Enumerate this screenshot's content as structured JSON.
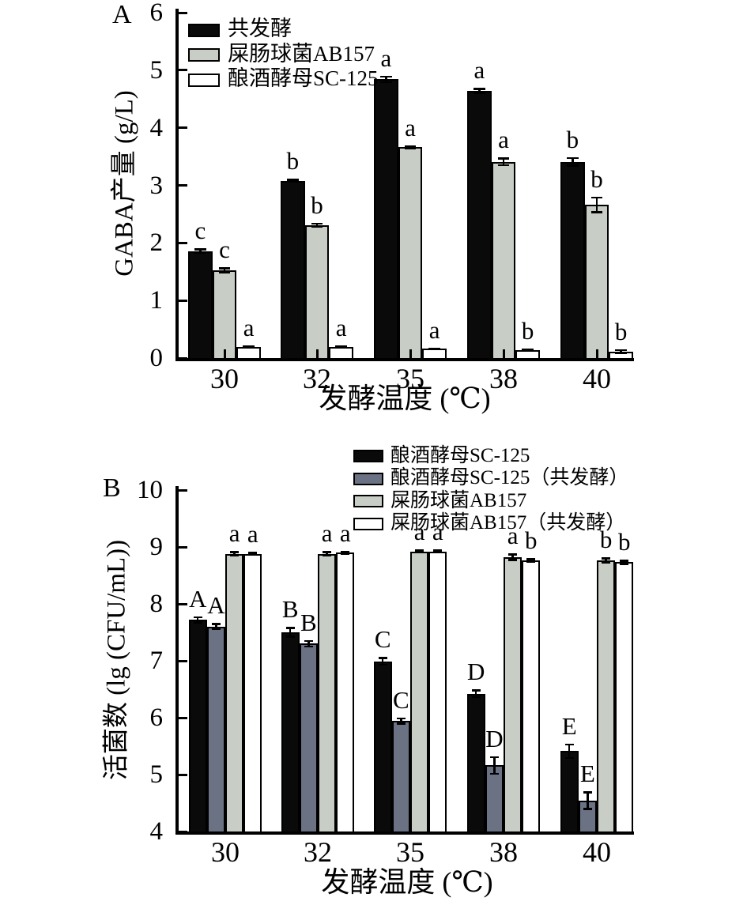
{
  "figure": {
    "panel_a": {
      "label": "A"
    },
    "panel_b": {
      "label": "B"
    }
  },
  "chart_data": [
    {
      "type": "bar",
      "panel": "A",
      "title": "",
      "xlabel": "发酵温度 (℃)",
      "ylabel": "GABA产量 (g/L)",
      "categories": [
        "30",
        "32",
        "35",
        "38",
        "40"
      ],
      "ylim": [
        0,
        6
      ],
      "yticks": [
        0,
        1,
        2,
        3,
        4,
        5,
        6
      ],
      "grid": false,
      "legend_position": "upper-left-inside",
      "series": [
        {
          "name": "共发酵",
          "color": "#0a0a0a",
          "values": [
            1.86,
            3.08,
            4.84,
            4.64,
            3.41
          ],
          "errors": [
            0.03,
            0.02,
            0.05,
            0.04,
            0.07
          ],
          "sig_letters": [
            "c",
            "b",
            "a",
            "a",
            "b"
          ]
        },
        {
          "name": "屎肠球菌AB157",
          "color": "#c8cdc6",
          "values": [
            1.52,
            2.31,
            3.66,
            3.41,
            2.66
          ],
          "errors": [
            0.04,
            0.03,
            0.02,
            0.06,
            0.13
          ],
          "sig_letters": [
            "c",
            "b",
            "a",
            "a",
            "b"
          ]
        },
        {
          "name": "酿酒酵母SC-125",
          "color": "#ffffff",
          "values": [
            0.19,
            0.19,
            0.16,
            0.14,
            0.11
          ],
          "errors": [
            0.01,
            0.01,
            0.01,
            0.01,
            0.03
          ],
          "sig_letters": [
            "a",
            "a",
            "a",
            "b",
            "b"
          ]
        }
      ]
    },
    {
      "type": "bar",
      "panel": "B",
      "title": "",
      "xlabel": "发酵温度 (℃)",
      "ylabel": "活菌数 (lg (CFU/mL))",
      "categories": [
        "30",
        "32",
        "35",
        "38",
        "40"
      ],
      "ylim": [
        4,
        10
      ],
      "yticks": [
        4,
        5,
        6,
        7,
        8,
        9,
        10
      ],
      "grid": false,
      "legend_position": "top-right-above",
      "series": [
        {
          "name": "酿酒酵母SC-125",
          "color": "#0a0a0a",
          "values": [
            7.72,
            7.5,
            6.99,
            6.42,
            5.41
          ],
          "errors": [
            0.05,
            0.08,
            0.06,
            0.06,
            0.12
          ],
          "sig_letters": [
            "A",
            "B",
            "C",
            "D",
            "E"
          ]
        },
        {
          "name": "酿酒酵母SC-125（共发酵）",
          "color": "#6b7284",
          "values": [
            7.6,
            7.3,
            5.94,
            5.16,
            4.54
          ],
          "errors": [
            0.05,
            0.05,
            0.05,
            0.15,
            0.15
          ],
          "sig_letters": [
            "A",
            "B",
            "C",
            "D",
            "E"
          ]
        },
        {
          "name": "屎肠球菌AB157",
          "color": "#c8cdc6",
          "values": [
            8.88,
            8.88,
            8.92,
            8.82,
            8.76
          ],
          "errors": [
            0.03,
            0.03,
            0.02,
            0.05,
            0.04
          ],
          "sig_letters": [
            "a",
            "a",
            "a",
            "a",
            "b"
          ]
        },
        {
          "name": "屎肠球菌AB157（共发酵）",
          "color": "#ffffff",
          "values": [
            8.88,
            8.9,
            8.92,
            8.76,
            8.73
          ],
          "errors": [
            0.02,
            0.02,
            0.02,
            0.03,
            0.03
          ],
          "sig_letters": [
            "a",
            "a",
            "a",
            "b",
            "b"
          ]
        }
      ]
    }
  ]
}
